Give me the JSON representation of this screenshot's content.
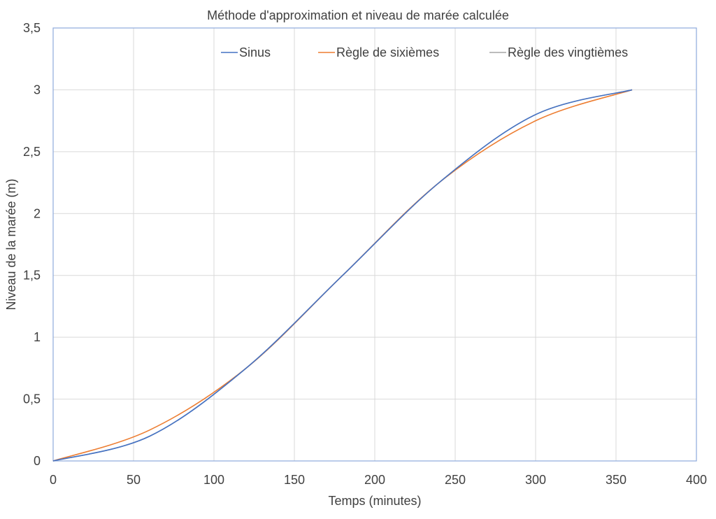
{
  "chart_data": {
    "type": "line",
    "title": "Méthode d'approximation et niveau de marée calculée",
    "xlabel": "Temps (minutes)",
    "ylabel": "Niveau de la marée (m)",
    "xlim": [
      0,
      400
    ],
    "ylim": [
      0,
      3.5
    ],
    "x_ticks": [
      0,
      50,
      100,
      150,
      200,
      250,
      300,
      350,
      400
    ],
    "y_ticks": [
      0,
      0.5,
      1,
      1.5,
      2,
      2.5,
      3,
      3.5
    ],
    "x_tick_labels": [
      "0",
      "50",
      "100",
      "150",
      "200",
      "250",
      "300",
      "350",
      "400"
    ],
    "y_tick_labels": [
      "0",
      "0,5",
      "1",
      "1,5",
      "2",
      "2,5",
      "3",
      "3,5"
    ],
    "grid": true,
    "legend_position": "top",
    "series": [
      {
        "name": "Sinus",
        "color": "#4472c4",
        "x": [
          0,
          60,
          120,
          180,
          240,
          300,
          360
        ],
        "y": [
          0,
          0.2,
          0.75,
          1.5,
          2.25,
          2.8,
          3.0
        ]
      },
      {
        "name": "Règle de sixièmes",
        "color": "#ed7d31",
        "x": [
          0,
          60,
          120,
          180,
          240,
          300,
          360
        ],
        "y": [
          0,
          0.25,
          0.75,
          1.5,
          2.25,
          2.75,
          3.0
        ]
      },
      {
        "name": "Règle des vingtièmes",
        "color": "#a5a5a5",
        "x": [
          0,
          60,
          120,
          180,
          240,
          300,
          360
        ],
        "y": [
          0,
          0.2,
          0.75,
          1.5,
          2.25,
          2.8,
          3.0
        ]
      }
    ]
  }
}
